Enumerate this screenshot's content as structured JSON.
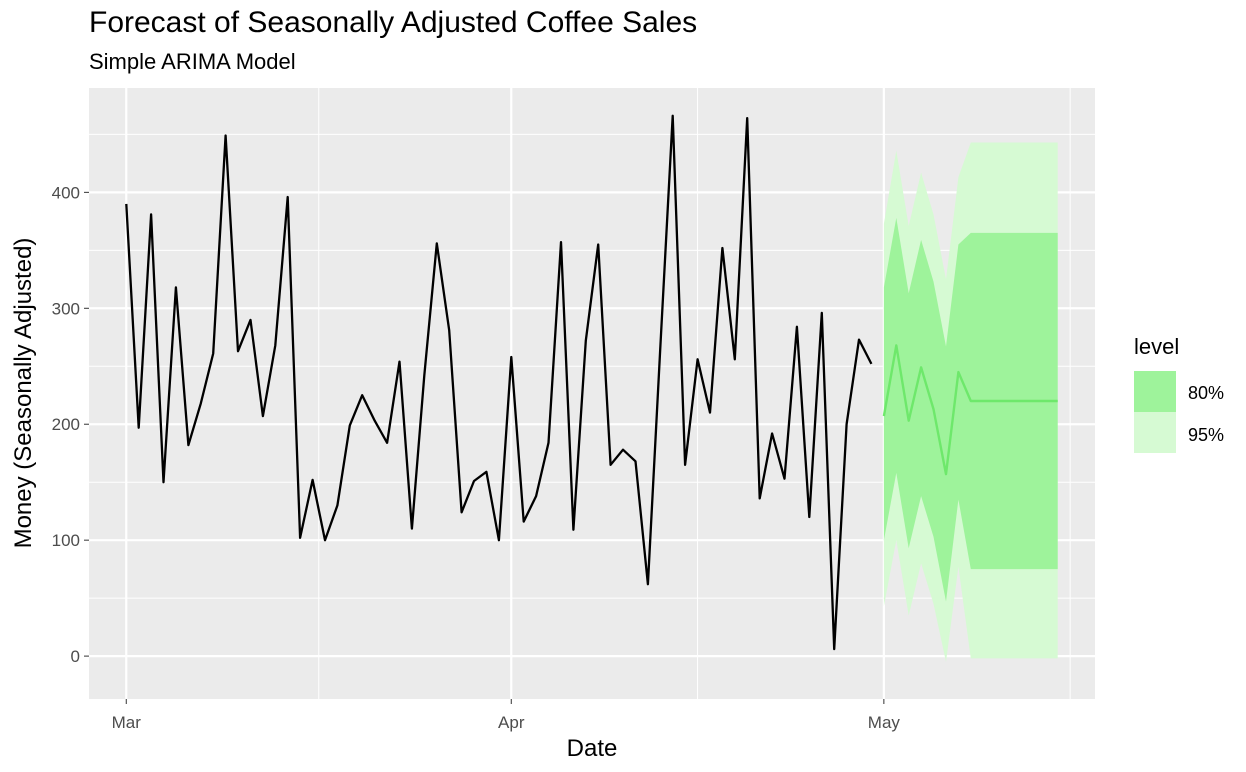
{
  "chart_data": {
    "type": "line",
    "title": "Forecast of Seasonally Adjusted Coffee Sales",
    "subtitle": "Simple ARIMA Model",
    "xlabel": "Date",
    "ylabel": "Money (Seasonally Adjusted)",
    "x_ticks": [
      {
        "date": "2024-03-01",
        "label": "Mar"
      },
      {
        "date": "2024-04-01",
        "label": "Apr"
      },
      {
        "date": "2024-05-01",
        "label": "May"
      }
    ],
    "y_ticks": [
      0,
      100,
      200,
      300,
      400
    ],
    "xlim": [
      "2024-02-27",
      "2024-05-18"
    ],
    "ylim": [
      -37,
      490
    ],
    "grid": true,
    "legend": {
      "title": "level",
      "position": "right",
      "items": [
        {
          "label": "80%",
          "color": "#9ef39b"
        },
        {
          "label": "95%",
          "color": "#d6fad3"
        }
      ]
    },
    "colors": {
      "observed": "#000000",
      "forecast": "#6ee86b",
      "band80": "#9ef39b",
      "band95": "#d6fad3",
      "panel": "#ebebeb",
      "grid": "#ffffff"
    },
    "series": [
      {
        "kind": "observed",
        "x": [
          "2024-03-01",
          "2024-03-02",
          "2024-03-03",
          "2024-03-04",
          "2024-03-05",
          "2024-03-06",
          "2024-03-07",
          "2024-03-08",
          "2024-03-09",
          "2024-03-10",
          "2024-03-11",
          "2024-03-12",
          "2024-03-13",
          "2024-03-14",
          "2024-03-15",
          "2024-03-16",
          "2024-03-17",
          "2024-03-18",
          "2024-03-19",
          "2024-03-20",
          "2024-03-21",
          "2024-03-22",
          "2024-03-23",
          "2024-03-24",
          "2024-03-25",
          "2024-03-26",
          "2024-03-27",
          "2024-03-28",
          "2024-03-29",
          "2024-03-30",
          "2024-03-31",
          "2024-04-01",
          "2024-04-02",
          "2024-04-03",
          "2024-04-04",
          "2024-04-05",
          "2024-04-06",
          "2024-04-07",
          "2024-04-08",
          "2024-04-09",
          "2024-04-10",
          "2024-04-11",
          "2024-04-12",
          "2024-04-13",
          "2024-04-14",
          "2024-04-15",
          "2024-04-16",
          "2024-04-17",
          "2024-04-18",
          "2024-04-19",
          "2024-04-20",
          "2024-04-21",
          "2024-04-22",
          "2024-04-23",
          "2024-04-24",
          "2024-04-25",
          "2024-04-26",
          "2024-04-27",
          "2024-04-28",
          "2024-04-29",
          "2024-04-30"
        ],
        "y": [
          390,
          197,
          381,
          150,
          318,
          182,
          218,
          261,
          449,
          263,
          290,
          207,
          268,
          396,
          102,
          152,
          100,
          130,
          199,
          225,
          203,
          184,
          254,
          110,
          242,
          356,
          281,
          124,
          151,
          159,
          100,
          258,
          116,
          138,
          184,
          357,
          109,
          272,
          355,
          165,
          178,
          168,
          62,
          266,
          466,
          165,
          256,
          210,
          352,
          256,
          464,
          136,
          192,
          153,
          284,
          120,
          296,
          6,
          200,
          273,
          252
        ]
      },
      {
        "kind": "forecast",
        "x": [
          "2024-05-01",
          "2024-05-02",
          "2024-05-03",
          "2024-05-04",
          "2024-05-05",
          "2024-05-06",
          "2024-05-07",
          "2024-05-08",
          "2024-05-09",
          "2024-05-10",
          "2024-05-11",
          "2024-05-12",
          "2024-05-13",
          "2024-05-14",
          "2024-05-15"
        ],
        "mean": [
          207,
          268,
          203,
          249,
          213,
          157,
          245,
          220,
          220,
          220,
          220,
          220,
          220,
          220,
          220
        ],
        "lo80": [
          100,
          158,
          93,
          138,
          103,
          47,
          135,
          75,
          75,
          75,
          75,
          75,
          75,
          75,
          75
        ],
        "hi80": [
          318,
          378,
          313,
          359,
          323,
          267,
          355,
          365,
          365,
          365,
          365,
          365,
          365,
          365,
          365
        ],
        "lo95": [
          43,
          100,
          35,
          80,
          45,
          -5,
          77,
          -2,
          -2,
          -2,
          -2,
          -2,
          -2,
          -2,
          -2
        ],
        "hi95": [
          373,
          436,
          371,
          417,
          381,
          325,
          413,
          443,
          443,
          443,
          443,
          443,
          443,
          443,
          443
        ]
      }
    ]
  }
}
